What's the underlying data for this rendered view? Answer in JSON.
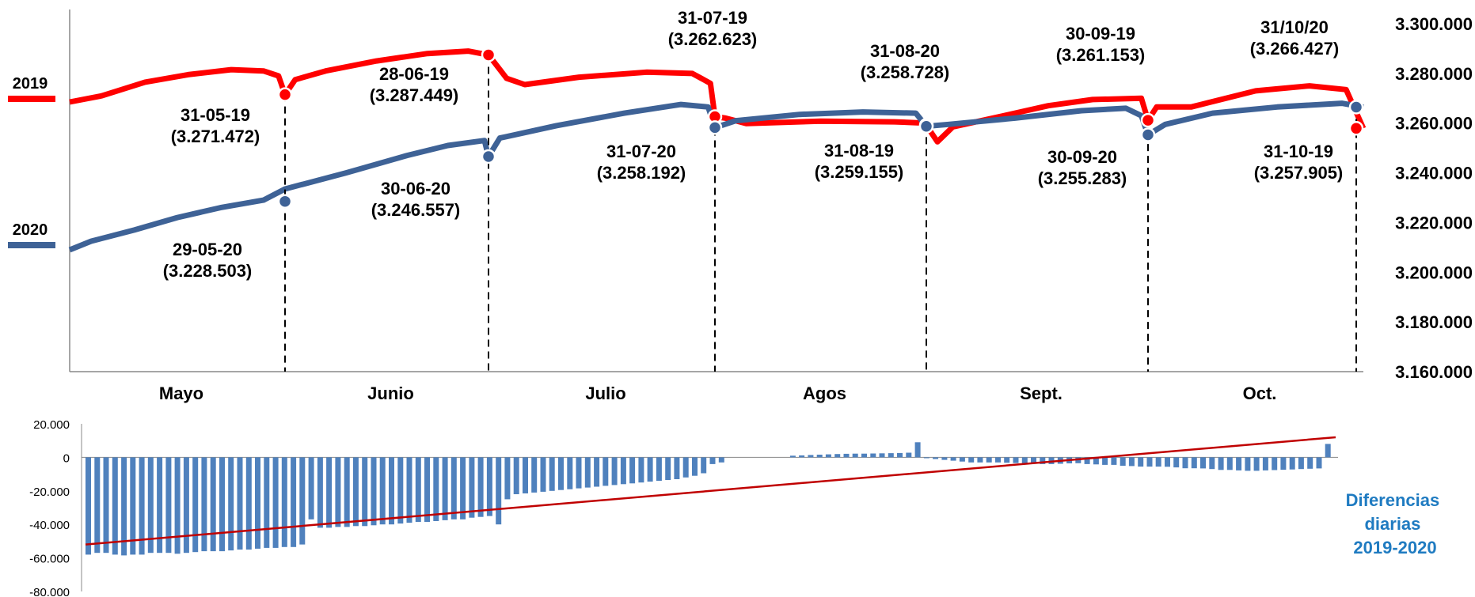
{
  "chart_data": [
    {
      "type": "line",
      "x_groups": [
        "Mayo",
        "Junio",
        "Julio",
        "Agos",
        "Sept.",
        "Oct."
      ],
      "y_axis": {
        "position": "right",
        "ylim": [
          3160000,
          3300000
        ],
        "ticks": [
          "3.160.000",
          "3.180.000",
          "3.200.000",
          "3.220.000",
          "3.240.000",
          "3.260.000",
          "3.280.000",
          "3.300.000"
        ]
      },
      "colors": {
        "2019": "#ff0000",
        "2020": "#3e6296"
      },
      "series": [
        {
          "name": "2019",
          "x": [
            "01-05-19",
            "31-05-19",
            "28-06-19",
            "31-07-19",
            "31-08-19",
            "30-09-19",
            "31-10-19"
          ],
          "values": [
            3268500,
            3271472,
            3287449,
            3262623,
            3259155,
            3261153,
            3257905
          ]
        },
        {
          "name": "2020",
          "x": [
            "01-05-20",
            "29-05-20",
            "30-06-20",
            "31-07-20",
            "31-08-20",
            "30-09-20",
            "31/10/20"
          ],
          "values": [
            3209000,
            3228503,
            3246557,
            3258192,
            3258728,
            3255283,
            3266427
          ]
        }
      ],
      "annotations": [
        {
          "date": "31-05-19",
          "value": "(3.271.472)"
        },
        {
          "date": "29-05-20",
          "value": "(3.228.503)"
        },
        {
          "date": "28-06-19",
          "value": "(3.287.449)"
        },
        {
          "date": "30-06-20",
          "value": "(3.246.557)"
        },
        {
          "date": "31-07-19",
          "value": "(3.262.623)"
        },
        {
          "date": "31-07-20",
          "value": "(3.258.192)"
        },
        {
          "date": "31-08-20",
          "value": "(3.258.728)"
        },
        {
          "date": "31-08-19",
          "value": "(3.259.155)"
        },
        {
          "date": "30-09-19",
          "value": "(3.261.153)"
        },
        {
          "date": "30-09-20",
          "value": "(3.255.283)"
        },
        {
          "date": "31/10/20",
          "value": "(3.266.427)"
        },
        {
          "date": "31-10-19",
          "value": "(3.257.905)"
        }
      ]
    },
    {
      "type": "bar",
      "title": "Diferencias diarias 2019-2020",
      "title_lines": [
        "Diferencias",
        "diarias",
        "2019-2020"
      ],
      "title_color": "#1f7bc1",
      "bar_color": "#4f81bd",
      "trend_color": "#c00000",
      "ylim": [
        -80000,
        20000
      ],
      "ticks": [
        "20.000",
        "0",
        "-20.000",
        "-40.000",
        "-60.000",
        "-80.000"
      ],
      "trend": [
        -52000,
        12000
      ],
      "values": [
        -58000,
        -57000,
        -57000,
        -58000,
        -58500,
        -58000,
        -58000,
        -57000,
        -57000,
        -57000,
        -57500,
        -57000,
        -56500,
        -56000,
        -56000,
        -56000,
        -55500,
        -55000,
        -55000,
        -54500,
        -54000,
        -54000,
        -53500,
        -53500,
        -52000,
        -37000,
        -42000,
        -42000,
        -41500,
        -41500,
        -41000,
        -41000,
        -40500,
        -40000,
        -40000,
        -39500,
        -39000,
        -38500,
        -38500,
        -38000,
        -37500,
        -37000,
        -37000,
        -36000,
        -35500,
        -35000,
        -40000,
        -25000,
        -22000,
        -21500,
        -21000,
        -20500,
        -20000,
        -19500,
        -19000,
        -18500,
        -18000,
        -17500,
        -17000,
        -16500,
        -16000,
        -15500,
        -15000,
        -14500,
        -14000,
        -13500,
        -13000,
        -12000,
        -11000,
        -9500,
        -4000,
        -3000,
        0,
        0,
        0,
        0,
        0,
        0,
        0,
        1000,
        1200,
        1400,
        1600,
        1800,
        2000,
        2100,
        2200,
        2200,
        2300,
        2400,
        2500,
        2600,
        2800,
        9000,
        -500,
        -1000,
        -1500,
        -2000,
        -2500,
        -3000,
        -3000,
        -3000,
        -3000,
        -3200,
        -3400,
        -3600,
        -3800,
        -4000,
        -4000,
        -3800,
        -3600,
        -3500,
        -4000,
        -4200,
        -4500,
        -4500,
        -5000,
        -5200,
        -5500,
        -5500,
        -5500,
        -5600,
        -6000,
        -6500,
        -6500,
        -6600,
        -7000,
        -7500,
        -7500,
        -7800,
        -8000,
        -8000,
        -7800,
        -7600,
        -7400,
        -7200,
        -7000,
        -6800,
        -6600,
        8000
      ]
    }
  ]
}
